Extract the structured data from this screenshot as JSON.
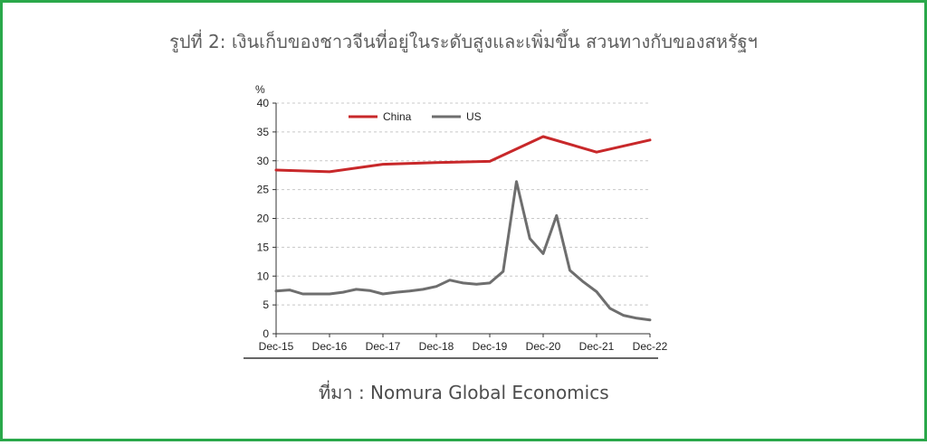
{
  "caption": "รูปที่ 2: เงินเก็บของชาวจีนที่อยู่ในระดับสูงและเพิ่มขึ้น สวนทางกับของสหรัฐฯ",
  "source": "ที่มา : Nomura Global Economics",
  "colors": {
    "frame": "#2aa84a",
    "china": "#c8282a",
    "us": "#6e6e6e"
  },
  "chart_data": {
    "type": "line",
    "ylabel": "%",
    "ylim": [
      0,
      40
    ],
    "yticks": [
      0,
      5,
      10,
      15,
      20,
      25,
      30,
      35,
      40
    ],
    "xticks": [
      "Dec-15",
      "Dec-16",
      "Dec-17",
      "Dec-18",
      "Dec-19",
      "Dec-20",
      "Dec-21",
      "Dec-22"
    ],
    "xlim": [
      0,
      28
    ],
    "grid": true,
    "legend": "top",
    "series": [
      {
        "name": "China",
        "color": "#c8282a",
        "points": [
          [
            0,
            28.4
          ],
          [
            4,
            28.1
          ],
          [
            8,
            29.4
          ],
          [
            12,
            29.7
          ],
          [
            16,
            29.9
          ],
          [
            20,
            34.2
          ],
          [
            24,
            31.5
          ],
          [
            28,
            33.6
          ]
        ]
      },
      {
        "name": "US",
        "color": "#6e6e6e",
        "points": [
          [
            0,
            7.4
          ],
          [
            1,
            7.6
          ],
          [
            2,
            6.9
          ],
          [
            3,
            6.9
          ],
          [
            4,
            6.9
          ],
          [
            5,
            7.2
          ],
          [
            6,
            7.7
          ],
          [
            7,
            7.5
          ],
          [
            8,
            6.9
          ],
          [
            9,
            7.2
          ],
          [
            10,
            7.4
          ],
          [
            11,
            7.7
          ],
          [
            12,
            8.2
          ],
          [
            13,
            9.3
          ],
          [
            14,
            8.8
          ],
          [
            15,
            8.6
          ],
          [
            16,
            8.8
          ],
          [
            17,
            10.8
          ],
          [
            18,
            26.4
          ],
          [
            19,
            16.5
          ],
          [
            20,
            13.9
          ],
          [
            21,
            20.5
          ],
          [
            22,
            11.0
          ],
          [
            23,
            9.0
          ],
          [
            24,
            7.3
          ],
          [
            25,
            4.4
          ],
          [
            26,
            3.2
          ],
          [
            27,
            2.7
          ],
          [
            28,
            2.4
          ]
        ]
      }
    ]
  }
}
